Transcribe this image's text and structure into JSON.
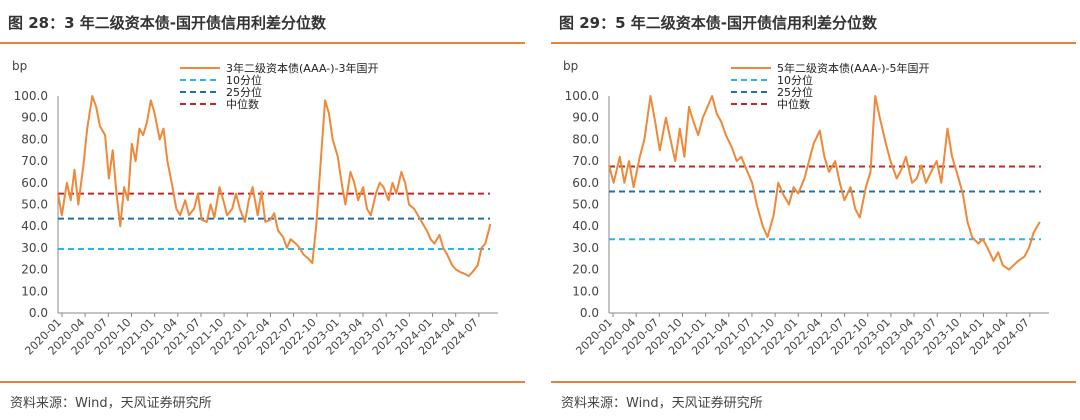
{
  "panels": [
    {
      "title": "图 28：3 年二级资本债-国开债信用利差分位数",
      "source": "资料来源：Wind，天风证券研究所"
    },
    {
      "title": "图 29：5 年二级资本债-国开债信用利差分位数",
      "source": "资料来源：Wind，天风证券研究所"
    }
  ],
  "chart_data": [
    {
      "type": "line",
      "ylabel": "bp",
      "ylim": [
        0,
        100
      ],
      "yticks": [
        "0.0",
        "10.0",
        "20.0",
        "30.0",
        "40.0",
        "50.0",
        "60.0",
        "70.0",
        "80.0",
        "90.0",
        "100.0"
      ],
      "xticks": [
        "2020-01",
        "2020-04",
        "2020-07",
        "2020-10",
        "2021-01",
        "2021-04",
        "2021-07",
        "2021-10",
        "2022-01",
        "2022-04",
        "2022-07",
        "2022-10",
        "2023-01",
        "2023-04",
        "2023-07",
        "2023-10",
        "2024-01",
        "2024-04",
        "2024-07"
      ],
      "x_start": "2020-01",
      "x_end": "2024-09",
      "legend_position": "top-center",
      "series": [
        {
          "name": "3年二级资本债(AAA-)-3年国开",
          "color": "#f0883a",
          "style": "solid",
          "points": [
            [
              0,
              55
            ],
            [
              0.3,
              45
            ],
            [
              0.7,
              60
            ],
            [
              1.0,
              52
            ],
            [
              1.3,
              66
            ],
            [
              1.6,
              50
            ],
            [
              2.0,
              68
            ],
            [
              2.3,
              85
            ],
            [
              2.7,
              100
            ],
            [
              3.0,
              95
            ],
            [
              3.3,
              86
            ],
            [
              3.7,
              82
            ],
            [
              4.0,
              62
            ],
            [
              4.3,
              75
            ],
            [
              4.6,
              55
            ],
            [
              4.9,
              40
            ],
            [
              5.2,
              58
            ],
            [
              5.5,
              52
            ],
            [
              5.8,
              78
            ],
            [
              6.1,
              70
            ],
            [
              6.4,
              85
            ],
            [
              6.7,
              82
            ],
            [
              7.0,
              88
            ],
            [
              7.3,
              98
            ],
            [
              7.6,
              92
            ],
            [
              8.0,
              80
            ],
            [
              8.3,
              85
            ],
            [
              8.6,
              70
            ],
            [
              9.0,
              58
            ],
            [
              9.3,
              48
            ],
            [
              9.6,
              45
            ],
            [
              10.0,
              52
            ],
            [
              10.3,
              45
            ],
            [
              10.7,
              48
            ],
            [
              11.0,
              55
            ],
            [
              11.3,
              43
            ],
            [
              11.7,
              42
            ],
            [
              12.0,
              50
            ],
            [
              12.3,
              44
            ],
            [
              12.7,
              58
            ],
            [
              13.0,
              52
            ],
            [
              13.3,
              45
            ],
            [
              13.7,
              48
            ],
            [
              14.0,
              55
            ],
            [
              14.3,
              48
            ],
            [
              14.7,
              42
            ],
            [
              15.0,
              52
            ],
            [
              15.3,
              58
            ],
            [
              15.7,
              45
            ],
            [
              16.0,
              56
            ],
            [
              16.3,
              42
            ],
            [
              16.7,
              43
            ],
            [
              17.0,
              46
            ],
            [
              17.3,
              38
            ],
            [
              17.7,
              35
            ],
            [
              18.0,
              30
            ],
            [
              18.3,
              34
            ],
            [
              18.7,
              32
            ],
            [
              19.0,
              30
            ],
            [
              19.3,
              27
            ],
            [
              19.7,
              25
            ],
            [
              20.0,
              23
            ],
            [
              20.3,
              40
            ],
            [
              20.6,
              65
            ],
            [
              21.0,
              98
            ],
            [
              21.3,
              92
            ],
            [
              21.6,
              80
            ],
            [
              22.0,
              72
            ],
            [
              22.3,
              60
            ],
            [
              22.6,
              50
            ],
            [
              23.0,
              65
            ],
            [
              23.3,
              60
            ],
            [
              23.6,
              52
            ],
            [
              24.0,
              58
            ],
            [
              24.3,
              48
            ],
            [
              24.6,
              45
            ],
            [
              25.0,
              55
            ],
            [
              25.3,
              60
            ],
            [
              25.6,
              58
            ],
            [
              26.0,
              52
            ],
            [
              26.3,
              60
            ],
            [
              26.6,
              55
            ],
            [
              27.0,
              65
            ],
            [
              27.3,
              60
            ],
            [
              27.6,
              50
            ],
            [
              28.0,
              48
            ],
            [
              28.3,
              45
            ],
            [
              28.6,
              42
            ],
            [
              29.0,
              38
            ],
            [
              29.3,
              34
            ],
            [
              29.6,
              32
            ],
            [
              30.0,
              36
            ],
            [
              30.3,
              30
            ],
            [
              30.6,
              27
            ],
            [
              31.0,
              22
            ],
            [
              31.3,
              20
            ],
            [
              31.6,
              19
            ],
            [
              32.0,
              18
            ],
            [
              32.3,
              17
            ],
            [
              32.6,
              19
            ],
            [
              33.0,
              22
            ],
            [
              33.3,
              30
            ],
            [
              33.6,
              32
            ],
            [
              34.0,
              41
            ]
          ]
        },
        {
          "name": "10分位",
          "color": "#29b6e8",
          "style": "dashed",
          "value": 29.5
        },
        {
          "name": "25分位",
          "color": "#1f6fb2",
          "style": "dashed",
          "value": 43.5
        },
        {
          "name": "中位数",
          "color": "#c0282d",
          "style": "dashed",
          "value": 55.0
        }
      ]
    },
    {
      "type": "line",
      "ylabel": "bp",
      "ylim": [
        0,
        100
      ],
      "yticks": [
        "0.0",
        "10.0",
        "20.0",
        "30.0",
        "40.0",
        "50.0",
        "60.0",
        "70.0",
        "80.0",
        "90.0",
        "100.0"
      ],
      "xticks": [
        "2020-01",
        "2020-04",
        "2020-07",
        "2020-10",
        "2021-01",
        "2021-04",
        "2021-07",
        "2021-10",
        "2022-01",
        "2022-04",
        "2022-07",
        "2022-10",
        "2023-01",
        "2023-04",
        "2023-07",
        "2023-10",
        "2024-01",
        "2024-04",
        "2024-07"
      ],
      "x_start": "2020-01",
      "x_end": "2024-09",
      "legend_position": "top-center",
      "series": [
        {
          "name": "5年二级资本债(AAA-)-5年国开",
          "color": "#f0883a",
          "style": "solid",
          "points": [
            [
              0,
              68
            ],
            [
              0.3,
              60
            ],
            [
              0.7,
              72
            ],
            [
              1.0,
              60
            ],
            [
              1.3,
              70
            ],
            [
              1.6,
              58
            ],
            [
              2.0,
              72
            ],
            [
              2.3,
              80
            ],
            [
              2.7,
              100
            ],
            [
              3.0,
              88
            ],
            [
              3.3,
              75
            ],
            [
              3.7,
              90
            ],
            [
              4.0,
              80
            ],
            [
              4.3,
              70
            ],
            [
              4.6,
              85
            ],
            [
              4.9,
              72
            ],
            [
              5.2,
              95
            ],
            [
              5.5,
              88
            ],
            [
              5.8,
              82
            ],
            [
              6.1,
              90
            ],
            [
              6.4,
              95
            ],
            [
              6.7,
              100
            ],
            [
              7.0,
              92
            ],
            [
              7.3,
              88
            ],
            [
              7.6,
              82
            ],
            [
              8.0,
              76
            ],
            [
              8.3,
              70
            ],
            [
              8.6,
              72
            ],
            [
              9.0,
              65
            ],
            [
              9.3,
              60
            ],
            [
              9.6,
              50
            ],
            [
              10.0,
              40
            ],
            [
              10.3,
              35
            ],
            [
              10.7,
              45
            ],
            [
              11.0,
              60
            ],
            [
              11.3,
              55
            ],
            [
              11.7,
              50
            ],
            [
              12.0,
              58
            ],
            [
              12.3,
              55
            ],
            [
              12.7,
              62
            ],
            [
              13.0,
              70
            ],
            [
              13.3,
              78
            ],
            [
              13.7,
              84
            ],
            [
              14.0,
              72
            ],
            [
              14.3,
              65
            ],
            [
              14.7,
              70
            ],
            [
              15.0,
              60
            ],
            [
              15.3,
              52
            ],
            [
              15.7,
              58
            ],
            [
              16.0,
              48
            ],
            [
              16.3,
              44
            ],
            [
              16.7,
              58
            ],
            [
              17.0,
              65
            ],
            [
              17.3,
              100
            ],
            [
              17.6,
              90
            ],
            [
              18.0,
              78
            ],
            [
              18.3,
              70
            ],
            [
              18.7,
              62
            ],
            [
              19.0,
              66
            ],
            [
              19.3,
              72
            ],
            [
              19.7,
              60
            ],
            [
              20.0,
              62
            ],
            [
              20.3,
              68
            ],
            [
              20.6,
              60
            ],
            [
              21.0,
              66
            ],
            [
              21.3,
              70
            ],
            [
              21.6,
              60
            ],
            [
              22.0,
              85
            ],
            [
              22.3,
              72
            ],
            [
              22.6,
              65
            ],
            [
              23.0,
              55
            ],
            [
              23.3,
              42
            ],
            [
              23.6,
              35
            ],
            [
              24.0,
              32
            ],
            [
              24.3,
              34
            ],
            [
              24.6,
              30
            ],
            [
              25.0,
              24
            ],
            [
              25.3,
              28
            ],
            [
              25.6,
              22
            ],
            [
              26.0,
              20
            ],
            [
              26.3,
              22
            ],
            [
              26.6,
              24
            ],
            [
              27.0,
              26
            ],
            [
              27.3,
              30
            ],
            [
              27.6,
              37
            ],
            [
              28.0,
              42
            ]
          ]
        },
        {
          "name": "10分位",
          "color": "#29b6e8",
          "style": "dashed",
          "value": 34.0
        },
        {
          "name": "25分位",
          "color": "#1f6fb2",
          "style": "dashed",
          "value": 56.0
        },
        {
          "name": "中位数",
          "color": "#c0282d",
          "style": "dashed",
          "value": 67.5
        }
      ]
    }
  ]
}
